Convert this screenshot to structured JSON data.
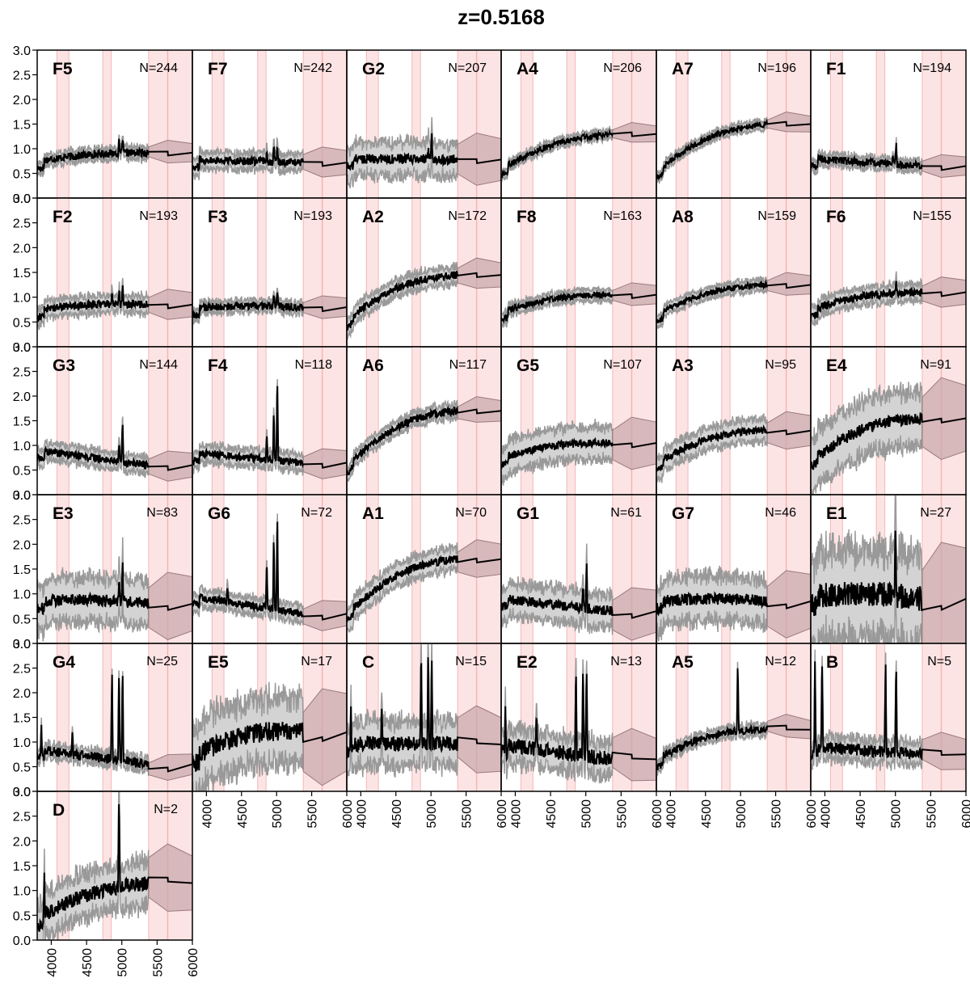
{
  "title": "z=0.5168",
  "chart_data": {
    "type": "line",
    "title": "z=0.5168",
    "xlim": [
      3800,
      6000
    ],
    "ylim": [
      0.0,
      3.0
    ],
    "x_ticks": [
      4000,
      4500,
      5000,
      5500,
      6000
    ],
    "y_ticks": [
      0.0,
      0.5,
      1.0,
      1.5,
      2.0,
      2.5,
      3.0
    ],
    "y_tick_labels": [
      "0.0",
      "0.5",
      "1.0",
      "1.5",
      "2.0",
      "2.5",
      "3.0"
    ],
    "x_tick_labels": [
      "4000",
      "4500",
      "5000",
      "5500",
      "6000"
    ],
    "shaded_bands": [
      [
        4080,
        4250
      ],
      [
        4730,
        4850
      ],
      [
        5380,
        6000
      ]
    ],
    "band_edge_lines": [
      5650
    ],
    "grid": false,
    "legend": "none",
    "colors": {
      "median": "#000000",
      "spread_fill": "#d3d3d3",
      "spread_edge": "#999999",
      "band_fill": "#fde4e4",
      "band_edge": "#f5b5b5",
      "interp_fill": "#c9a9ad"
    },
    "panels": [
      {
        "label": "F5",
        "n": "N=244",
        "start": 0.75,
        "end": 0.92,
        "slope": 0.2,
        "noise": 0.08,
        "spread": 0.1,
        "peaks": [
          [
            4960,
            1.25
          ],
          [
            5010,
            1.35
          ]
        ]
      },
      {
        "label": "F7",
        "n": "N=242",
        "start": 0.78,
        "end": 0.72,
        "slope": 0.0,
        "noise": 0.08,
        "spread": 0.15,
        "peaks": [
          [
            4860,
            1.3
          ],
          [
            4960,
            1.3
          ],
          [
            5010,
            1.4
          ]
        ]
      },
      {
        "label": "G2",
        "n": "N=207",
        "start": 0.8,
        "end": 0.78,
        "slope": 0.0,
        "noise": 0.1,
        "spread": 0.3,
        "peaks": [
          [
            4960,
            1.2
          ],
          [
            5010,
            1.5
          ]
        ]
      },
      {
        "label": "A4",
        "n": "N=206",
        "start": 0.6,
        "end": 1.3,
        "slope": 0.6,
        "noise": 0.06,
        "spread": 0.08,
        "peaks": []
      },
      {
        "label": "A7",
        "n": "N=196",
        "start": 0.55,
        "end": 1.5,
        "slope": 0.9,
        "noise": 0.06,
        "spread": 0.08,
        "peaks": []
      },
      {
        "label": "F1",
        "n": "N=194",
        "start": 0.8,
        "end": 0.65,
        "slope": 0.0,
        "noise": 0.08,
        "spread": 0.1,
        "peaks": [
          [
            4960,
            1.15
          ],
          [
            5010,
            1.45
          ]
        ]
      },
      {
        "label": "F2",
        "n": "N=193",
        "start": 0.75,
        "end": 0.85,
        "slope": 0.2,
        "noise": 0.08,
        "spread": 0.15,
        "peaks": [
          [
            4860,
            1.3
          ],
          [
            4960,
            1.3
          ],
          [
            5010,
            1.4
          ]
        ]
      },
      {
        "label": "F3",
        "n": "N=193",
        "start": 0.78,
        "end": 0.8,
        "slope": 0.1,
        "noise": 0.08,
        "spread": 0.1,
        "peaks": [
          [
            4960,
            1.2
          ],
          [
            5010,
            1.3
          ]
        ]
      },
      {
        "label": "A2",
        "n": "N=172",
        "start": 0.55,
        "end": 1.45,
        "slope": 0.9,
        "noise": 0.08,
        "spread": 0.15,
        "peaks": []
      },
      {
        "label": "F8",
        "n": "N=163",
        "start": 0.7,
        "end": 1.05,
        "slope": 0.4,
        "noise": 0.06,
        "spread": 0.1,
        "peaks": []
      },
      {
        "label": "A8",
        "n": "N=159",
        "start": 0.65,
        "end": 1.25,
        "slope": 0.6,
        "noise": 0.06,
        "spread": 0.1,
        "peaks": []
      },
      {
        "label": "F6",
        "n": "N=155",
        "start": 0.75,
        "end": 1.1,
        "slope": 0.4,
        "noise": 0.08,
        "spread": 0.15,
        "peaks": [
          [
            5010,
            1.3
          ]
        ]
      },
      {
        "label": "G3",
        "n": "N=144",
        "start": 0.9,
        "end": 0.6,
        "slope": 0.0,
        "noise": 0.08,
        "spread": 0.15,
        "peaks": [
          [
            4960,
            1.4
          ],
          [
            5010,
            1.9
          ]
        ]
      },
      {
        "label": "F4",
        "n": "N=118",
        "start": 0.85,
        "end": 0.65,
        "slope": 0.0,
        "noise": 0.08,
        "spread": 0.15,
        "peaks": [
          [
            4860,
            1.6
          ],
          [
            4960,
            2.0
          ],
          [
            5010,
            2.8
          ]
        ]
      },
      {
        "label": "A6",
        "n": "N=117",
        "start": 0.6,
        "end": 1.7,
        "slope": 1.1,
        "noise": 0.08,
        "spread": 0.12,
        "peaks": []
      },
      {
        "label": "G5",
        "n": "N=107",
        "start": 0.75,
        "end": 1.05,
        "slope": 0.4,
        "noise": 0.08,
        "spread": 0.3,
        "peaks": []
      },
      {
        "label": "A3",
        "n": "N=95",
        "start": 0.65,
        "end": 1.3,
        "slope": 0.7,
        "noise": 0.08,
        "spread": 0.2,
        "peaks": []
      },
      {
        "label": "E4",
        "n": "N=91",
        "start": 0.7,
        "end": 1.55,
        "slope": 0.9,
        "noise": 0.12,
        "spread": 0.5,
        "peaks": []
      },
      {
        "label": "E3",
        "n": "N=83",
        "start": 0.85,
        "end": 0.8,
        "slope": 0.2,
        "noise": 0.12,
        "spread": 0.4,
        "peaks": [
          [
            4960,
            1.5
          ],
          [
            5010,
            1.8
          ]
        ]
      },
      {
        "label": "G6",
        "n": "N=72",
        "start": 0.95,
        "end": 0.6,
        "slope": 0.0,
        "noise": 0.08,
        "spread": 0.15,
        "peaks": [
          [
            4300,
            1.3
          ],
          [
            4860,
            2.0
          ],
          [
            4960,
            2.5
          ],
          [
            5010,
            3.0
          ]
        ]
      },
      {
        "label": "A1",
        "n": "N=70",
        "start": 0.6,
        "end": 1.7,
        "slope": 1.1,
        "noise": 0.08,
        "spread": 0.2,
        "peaks": []
      },
      {
        "label": "G1",
        "n": "N=61",
        "start": 0.9,
        "end": 0.65,
        "slope": 0.0,
        "noise": 0.1,
        "spread": 0.3,
        "peaks": [
          [
            4960,
            1.5
          ],
          [
            5010,
            2.0
          ]
        ]
      },
      {
        "label": "G7",
        "n": "N=46",
        "start": 0.85,
        "end": 0.85,
        "slope": 0.2,
        "noise": 0.12,
        "spread": 0.4,
        "peaks": []
      },
      {
        "label": "E1",
        "n": "N=27",
        "start": 0.95,
        "end": 0.9,
        "slope": 0.3,
        "noise": 0.25,
        "spread": 0.8,
        "peaks": [
          [
            5000,
            2.4
          ]
        ]
      },
      {
        "label": "G4",
        "n": "N=25",
        "start": 0.85,
        "end": 0.55,
        "slope": 0.0,
        "noise": 0.1,
        "spread": 0.12,
        "peaks": [
          [
            3860,
            1.6
          ],
          [
            4300,
            1.6
          ],
          [
            4860,
            3.0
          ],
          [
            4960,
            3.0
          ],
          [
            5010,
            3.0
          ]
        ]
      },
      {
        "label": "E5",
        "n": "N=17",
        "start": 0.7,
        "end": 1.2,
        "slope": 0.8,
        "noise": 0.2,
        "spread": 0.6,
        "peaks": []
      },
      {
        "label": "C",
        "n": "N=15",
        "start": 0.95,
        "end": 0.95,
        "slope": 0.1,
        "noise": 0.15,
        "spread": 0.4,
        "peaks": [
          [
            3860,
            1.8
          ],
          [
            4300,
            1.8
          ],
          [
            4860,
            3.0
          ],
          [
            4960,
            3.0
          ],
          [
            5010,
            3.0
          ]
        ]
      },
      {
        "label": "E2",
        "n": "N=13",
        "start": 0.95,
        "end": 0.65,
        "slope": 0.0,
        "noise": 0.15,
        "spread": 0.3,
        "peaks": [
          [
            3860,
            1.8
          ],
          [
            4300,
            1.8
          ],
          [
            4860,
            3.0
          ],
          [
            4960,
            3.0
          ],
          [
            5010,
            3.0
          ]
        ]
      },
      {
        "label": "A5",
        "n": "N=12",
        "start": 0.65,
        "end": 1.25,
        "slope": 0.7,
        "noise": 0.08,
        "spread": 0.1,
        "peaks": [
          [
            4960,
            2.4
          ]
        ]
      },
      {
        "label": "B",
        "n": "N=5",
        "start": 0.9,
        "end": 0.75,
        "slope": 0.0,
        "noise": 0.12,
        "spread": 0.2,
        "peaks": [
          [
            3860,
            3.0
          ],
          [
            3960,
            3.0
          ],
          [
            4860,
            3.0
          ],
          [
            5010,
            3.0
          ]
        ]
      },
      {
        "label": "D",
        "n": "N=2",
        "start": 0.45,
        "end": 1.15,
        "slope": 0.6,
        "noise": 0.15,
        "spread": 0.4,
        "peaks": [
          [
            3900,
            1.9
          ],
          [
            4960,
            3.0
          ]
        ]
      }
    ]
  }
}
